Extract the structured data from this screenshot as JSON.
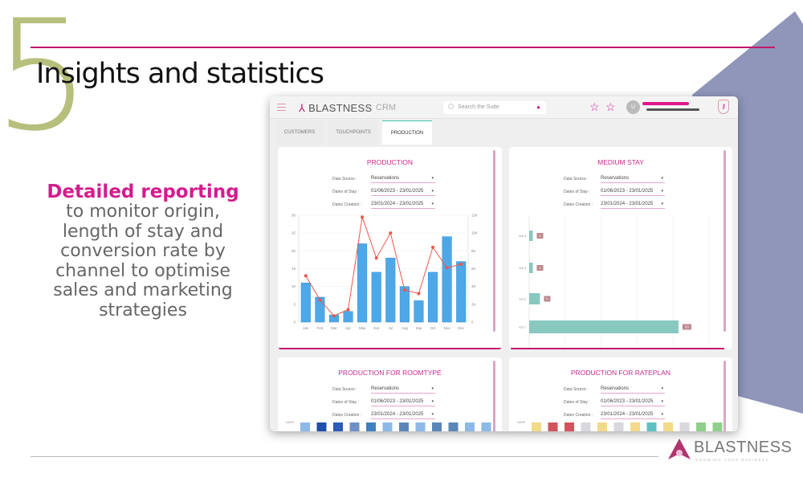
{
  "slide": {
    "number": "5",
    "title": "Insights and statistics",
    "highlight": "Detailed reporting",
    "body_lines": [
      "to monitor origin,",
      "length of stay and",
      "conversion rate by",
      "channel to optimise",
      "sales and marketing",
      "strategies"
    ],
    "accent": "#c2186b",
    "logo_name": "BLASTNESS",
    "logo_tagline": "GROWING YOUR BUSINESS"
  },
  "app": {
    "brand": "BLASTNESS",
    "product": "CRM",
    "search_placeholder": "Search the Suite",
    "avatar_initial": "U",
    "icons": [
      "menu-icon",
      "search-icon",
      "microphone-icon",
      "star-icon",
      "starred-list-icon",
      "shield-key-icon"
    ],
    "tabs": [
      {
        "label": "CUSTOMERS"
      },
      {
        "label": "TOUCHPOINTS"
      },
      {
        "label": "PRODUCTION",
        "active": true
      }
    ]
  },
  "filters": {
    "data_source_label": "Data Source :",
    "data_source_value": "Reservations",
    "dates_stay_label": "Dates of Stay :",
    "dates_stay_value": "01/06/2023 - 23/01/2025",
    "dates_creation_label": "Dates Creation :",
    "dates_creation_value": "23/01/2024 - 23/01/2025"
  },
  "cards": [
    {
      "title": "PRODUCTION"
    },
    {
      "title": "MEDIUM STAY"
    },
    {
      "title": "PRODUCTION FOR ROOMTYPE"
    },
    {
      "title": "PRODUCTION FOR RATEPLAN"
    }
  ],
  "chart_data": [
    {
      "type": "bar",
      "title": "PRODUCTION",
      "categories": [
        "Jan",
        "Feb",
        "Mar",
        "Apr",
        "May",
        "Jun",
        "Jul",
        "Aug",
        "Sep",
        "Oct",
        "Nov",
        "Dec"
      ],
      "series": [
        {
          "type": "bar",
          "axis": "left",
          "color": "#4ea8e8",
          "values": [
            11,
            7,
            2,
            3,
            22,
            14,
            18,
            10,
            6,
            14,
            24,
            17
          ]
        },
        {
          "type": "line",
          "axis": "right",
          "color": "#e8584a",
          "values": [
            5200,
            2500,
            700,
            1400,
            11800,
            7200,
            10000,
            3600,
            3200,
            8400,
            6100,
            6500
          ]
        }
      ],
      "ylim": [
        0,
        30
      ],
      "yticks": [
        "0",
        "5",
        "10",
        "15",
        "20",
        "25",
        "30"
      ],
      "y2lim": [
        0,
        12000
      ],
      "y2ticks": [
        "0",
        "2K",
        "4K",
        "6K",
        "8K",
        "10K",
        "12K"
      ],
      "grid": true
    },
    {
      "type": "bar",
      "orientation": "horizontal",
      "title": "MEDIUM STAY",
      "categories": [
        "los 4",
        "los 3",
        "los 2",
        "los 1"
      ],
      "values": [
        2,
        2,
        6,
        83
      ],
      "color": "#88c8bf",
      "label_color": "#b9878c",
      "xlim": [
        0,
        100
      ],
      "grid": true
    },
    {
      "type": "bar",
      "stacked": true,
      "title": "PRODUCTION FOR ROOMTYPE",
      "ytick_top": "100%",
      "colors": [
        "#8db9e8",
        "#1f4fa8",
        "#2a5cb8",
        "#6f90c4",
        "#3f7fc0",
        "#8db9e8",
        "#5a86b8",
        "#8db9e8",
        "#5a86b8",
        "#5a86b8",
        "#8db9e8",
        "#8db9e8"
      ]
    },
    {
      "type": "bar",
      "stacked": true,
      "title": "PRODUCTION FOR RATEPLAN",
      "ytick_top": "100%",
      "colors": [
        "#f3d98a",
        "#d0555e",
        "#d0555e",
        "#d8d8de",
        "#f3d98a",
        "#d8d8de",
        "#f3d98a",
        "#5fbfbf",
        "#f3d98a",
        "#d8d8de",
        "#8fcf8a",
        "#8fcf8a"
      ]
    }
  ]
}
